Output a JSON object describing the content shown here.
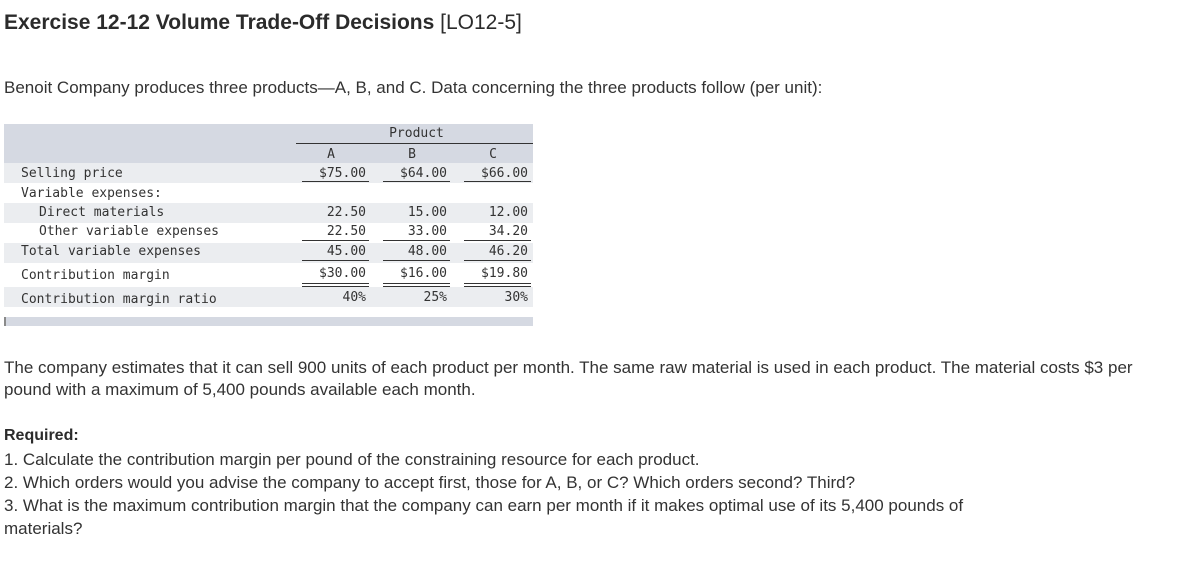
{
  "header": {
    "title": "Exercise 12-12 Volume Trade-Off Decisions",
    "lo_tag": "[LO12-5]"
  },
  "intro": "Benoit Company produces three products—A, B, and C. Data concerning the three products follow (per unit):",
  "table": {
    "group_header": "Product",
    "columns": [
      "A",
      "B",
      "C"
    ],
    "rows": [
      {
        "label": "Selling price",
        "values": [
          "$75.00",
          "$64.00",
          "$66.00"
        ]
      },
      {
        "label": "Variable expenses:",
        "values": [
          "",
          "",
          ""
        ]
      },
      {
        "label": "Direct materials",
        "values": [
          "22.50",
          "15.00",
          "12.00"
        ]
      },
      {
        "label": "Other variable expenses",
        "values": [
          "22.50",
          "33.00",
          "34.20"
        ]
      },
      {
        "label": "Total variable expenses",
        "values": [
          "45.00",
          "48.00",
          "46.20"
        ]
      },
      {
        "label": "Contribution margin",
        "values": [
          "$30.00",
          "$16.00",
          "$19.80"
        ]
      },
      {
        "label": "Contribution margin ratio",
        "values": [
          "40%",
          "25%",
          "30%"
        ]
      }
    ]
  },
  "paragraph": "The company estimates that it can sell 900 units of each product per month. The same raw material is used in each product. The material costs $3 per pound with a maximum of 5,400 pounds available each month.",
  "required": {
    "heading": "Required:",
    "items": [
      "1. Calculate the contribution margin per pound of the constraining resource for each product.",
      "2. Which orders would you advise the company to accept first, those for A, B, or C? Which orders second? Third?",
      "3. What is the maximum contribution margin that the company can earn per month if it makes optimal use of its 5,400 pounds of",
      "materials?"
    ]
  }
}
